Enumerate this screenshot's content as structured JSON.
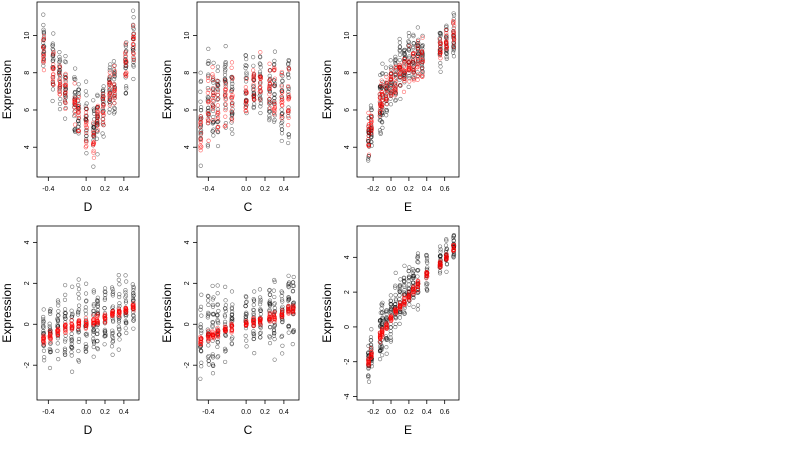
{
  "chart_data": [
    {
      "type": "scatter",
      "title": "",
      "xlabel": "D",
      "ylabel": "Expression",
      "xlim": [
        -0.52,
        0.56
      ],
      "ylim": [
        2.4,
        11.8
      ],
      "xticks": [
        -0.4,
        0.0,
        0.2,
        0.4
      ],
      "xtick_labels": [
        "-0.4",
        "0.0",
        "0.2",
        "0.4"
      ],
      "yticks": [
        4,
        6,
        8,
        10
      ],
      "ytick_labels": [
        "4",
        "6",
        "8",
        "10"
      ],
      "x_columns": [
        -0.45,
        -0.35,
        -0.28,
        -0.22,
        -0.12,
        -0.08,
        0.0,
        0.08,
        0.12,
        0.18,
        0.25,
        0.3,
        0.42,
        0.5
      ],
      "series": [
        {
          "color": "#000000",
          "mean_y": [
            9.5,
            8.3,
            7.6,
            7.2,
            6.6,
            6.2,
            5.3,
            4.9,
            5.8,
            6.4,
            6.9,
            7.3,
            8.3,
            9.6
          ],
          "spread": [
            1.4,
            1.4,
            1.3,
            1.4,
            1.5,
            1.5,
            1.6,
            1.4,
            1.5,
            1.4,
            1.4,
            1.4,
            1.5,
            1.3
          ]
        },
        {
          "color": "#ff0000",
          "mean_y": [
            9.4,
            8.1,
            7.4,
            7.0,
            6.4,
            6.0,
            5.0,
            4.4,
            5.6,
            6.3,
            6.8,
            7.2,
            8.5,
            9.8
          ],
          "spread": [
            0.9,
            0.9,
            0.9,
            0.9,
            0.9,
            0.9,
            0.8,
            0.8,
            0.9,
            0.9,
            0.9,
            0.9,
            0.9,
            0.9
          ]
        }
      ]
    },
    {
      "type": "scatter",
      "title": "",
      "xlabel": "C",
      "ylabel": "Expression",
      "xlim": [
        -0.52,
        0.56
      ],
      "ylim": [
        2.4,
        11.8
      ],
      "xticks": [
        -0.4,
        0.0,
        0.2,
        0.4
      ],
      "xtick_labels": [
        "-0.4",
        "0.0",
        "0.2",
        "0.4"
      ],
      "yticks": [
        4,
        6,
        8,
        10
      ],
      "ytick_labels": [
        "4",
        "6",
        "8",
        "10"
      ],
      "x_columns": [
        -0.48,
        -0.4,
        -0.35,
        -0.3,
        -0.22,
        -0.15,
        0.0,
        0.08,
        0.15,
        0.25,
        0.3,
        0.38,
        0.45
      ],
      "series": [
        {
          "color": "#000000",
          "mean_y": [
            5.5,
            6.0,
            6.5,
            6.2,
            6.8,
            6.4,
            7.0,
            7.2,
            6.9,
            7.0,
            6.8,
            6.4,
            6.6
          ],
          "spread": [
            2.0,
            2.2,
            2.3,
            2.0,
            2.0,
            1.8,
            1.5,
            1.6,
            1.7,
            1.9,
            2.0,
            2.0,
            2.2
          ]
        },
        {
          "color": "#ff0000",
          "mean_y": [
            5.0,
            6.0,
            6.6,
            6.2,
            6.5,
            6.6,
            6.8,
            7.3,
            7.2,
            7.3,
            7.0,
            6.8,
            7.0
          ],
          "spread": [
            1.5,
            1.4,
            1.6,
            1.4,
            1.4,
            1.3,
            1.2,
            1.3,
            1.3,
            1.4,
            1.4,
            1.4,
            1.6
          ]
        }
      ]
    },
    {
      "type": "scatter",
      "title": "",
      "xlabel": "E",
      "ylabel": "Expression",
      "xlim": [
        -0.38,
        0.76
      ],
      "ylim": [
        2.4,
        11.8
      ],
      "xticks": [
        -0.2,
        0.0,
        0.2,
        0.4,
        0.6
      ],
      "xtick_labels": [
        "-0.2",
        "0.0",
        "0.2",
        "0.4",
        "0.6"
      ],
      "yticks": [
        4,
        6,
        8,
        10
      ],
      "ytick_labels": [
        "4",
        "6",
        "8",
        "10"
      ],
      "x_columns": [
        -0.25,
        -0.22,
        -0.12,
        -0.1,
        -0.05,
        0.0,
        0.05,
        0.1,
        0.15,
        0.2,
        0.25,
        0.3,
        0.35,
        0.55,
        0.62,
        0.7
      ],
      "series": [
        {
          "color": "#000000",
          "mean_y": [
            4.4,
            5.0,
            6.4,
            6.8,
            7.2,
            7.6,
            7.8,
            8.2,
            8.4,
            8.7,
            8.8,
            8.9,
            9.0,
            9.4,
            9.6,
            9.8
          ],
          "spread": [
            0.9,
            1.0,
            1.6,
            1.6,
            1.5,
            1.4,
            1.4,
            1.3,
            1.3,
            1.3,
            1.2,
            1.2,
            1.2,
            1.0,
            1.0,
            1.0
          ]
        },
        {
          "color": "#ff0000",
          "mean_y": [
            4.8,
            5.2,
            6.2,
            6.8,
            7.2,
            7.4,
            7.6,
            7.9,
            8.0,
            8.3,
            8.4,
            8.6,
            8.8,
            9.4,
            9.6,
            10.0
          ],
          "spread": [
            0.8,
            0.8,
            0.9,
            0.9,
            0.8,
            0.8,
            0.8,
            0.8,
            0.8,
            0.8,
            0.8,
            0.8,
            0.8,
            0.6,
            0.6,
            0.6
          ]
        }
      ]
    },
    {
      "type": "scatter",
      "title": "",
      "xlabel": "D",
      "ylabel": "Expression",
      "xlim": [
        -0.52,
        0.56
      ],
      "ylim": [
        -3.7,
        4.8
      ],
      "xticks": [
        -0.4,
        0.0,
        0.2,
        0.4
      ],
      "xtick_labels": [
        "-0.4",
        "0.0",
        "0.2",
        "0.4"
      ],
      "yticks": [
        -2,
        0,
        2,
        4
      ],
      "ytick_labels": [
        "-2",
        "0",
        "2",
        "4"
      ],
      "x_columns": [
        -0.45,
        -0.38,
        -0.3,
        -0.22,
        -0.15,
        -0.08,
        0.0,
        0.08,
        0.12,
        0.2,
        0.28,
        0.35,
        0.42,
        0.5
      ],
      "series": [
        {
          "color": "#000000",
          "mean_y": [
            -0.6,
            -0.4,
            -0.2,
            0.0,
            0.1,
            0.2,
            0.1,
            0.3,
            0.3,
            0.4,
            0.5,
            0.6,
            0.7,
            0.9
          ],
          "spread": [
            1.3,
            1.4,
            1.5,
            1.5,
            1.6,
            1.6,
            1.7,
            1.6,
            1.6,
            1.5,
            1.5,
            1.5,
            1.5,
            1.4
          ]
        },
        {
          "color": "#ff0000",
          "mean_y": [
            -0.8,
            -0.6,
            -0.4,
            -0.2,
            -0.1,
            0.0,
            0.05,
            0.15,
            0.2,
            0.3,
            0.45,
            0.55,
            0.7,
            0.85
          ],
          "spread": [
            0.2,
            0.2,
            0.2,
            0.2,
            0.2,
            0.2,
            0.2,
            0.2,
            0.2,
            0.2,
            0.2,
            0.2,
            0.2,
            0.2
          ]
        }
      ]
    },
    {
      "type": "scatter",
      "title": "",
      "xlabel": "C",
      "ylabel": "Expression",
      "xlim": [
        -0.52,
        0.56
      ],
      "ylim": [
        -3.7,
        4.8
      ],
      "xticks": [
        -0.4,
        0.0,
        0.2,
        0.4
      ],
      "xtick_labels": [
        "-0.4",
        "0.0",
        "0.2",
        "0.4"
      ],
      "yticks": [
        -2,
        0,
        2,
        4
      ],
      "ytick_labels": [
        "-2",
        "0",
        "2",
        "4"
      ],
      "x_columns": [
        -0.48,
        -0.4,
        -0.35,
        -0.3,
        -0.22,
        -0.15,
        0.0,
        0.08,
        0.15,
        0.25,
        0.3,
        0.38,
        0.45,
        0.5
      ],
      "series": [
        {
          "color": "#000000",
          "mean_y": [
            -0.6,
            -0.3,
            -0.2,
            0.0,
            0.0,
            0.1,
            0.2,
            0.3,
            0.4,
            0.5,
            0.5,
            0.6,
            0.7,
            0.8
          ],
          "spread": [
            1.5,
            1.6,
            1.8,
            1.5,
            1.5,
            1.4,
            1.3,
            1.4,
            1.4,
            1.5,
            1.5,
            1.5,
            1.7,
            1.6
          ]
        },
        {
          "color": "#ff0000",
          "mean_y": [
            -0.8,
            -0.6,
            -0.5,
            -0.4,
            -0.3,
            -0.2,
            0.0,
            0.1,
            0.2,
            0.35,
            0.4,
            0.5,
            0.65,
            0.75
          ],
          "spread": [
            0.2,
            0.2,
            0.2,
            0.2,
            0.2,
            0.2,
            0.2,
            0.2,
            0.2,
            0.2,
            0.2,
            0.2,
            0.2,
            0.2
          ]
        }
      ]
    },
    {
      "type": "scatter",
      "title": "",
      "xlabel": "E",
      "ylabel": "Expression",
      "xlim": [
        -0.38,
        0.76
      ],
      "ylim": [
        -4.2,
        5.8
      ],
      "xticks": [
        -0.2,
        0.0,
        0.2,
        0.4,
        0.6
      ],
      "xtick_labels": [
        "-0.2",
        "0.0",
        "0.2",
        "0.4",
        "0.6"
      ],
      "yticks": [
        -4,
        -2,
        0,
        2,
        4
      ],
      "ytick_labels": [
        "-4",
        "-2",
        "0",
        "2",
        "4"
      ],
      "x_columns": [
        -0.25,
        -0.22,
        -0.12,
        -0.1,
        -0.05,
        0.0,
        0.05,
        0.1,
        0.15,
        0.2,
        0.25,
        0.3,
        0.4,
        0.55,
        0.62,
        0.7
      ],
      "series": [
        {
          "color": "#000000",
          "mean_y": [
            -2.2,
            -1.6,
            -0.4,
            -0.1,
            0.2,
            0.6,
            1.0,
            1.4,
            1.8,
            2.2,
            2.6,
            2.8,
            3.3,
            3.8,
            4.2,
            4.6
          ],
          "spread": [
            0.8,
            1.0,
            1.5,
            1.5,
            1.4,
            1.4,
            1.4,
            1.3,
            1.3,
            1.3,
            1.2,
            1.2,
            1.0,
            0.9,
            0.8,
            0.6
          ]
        },
        {
          "color": "#ff0000",
          "mean_y": [
            -2.0,
            -1.6,
            -0.6,
            -0.3,
            0.1,
            0.5,
            0.9,
            1.2,
            1.5,
            1.8,
            2.1,
            2.4,
            3.0,
            3.6,
            4.0,
            4.5
          ],
          "spread": [
            0.25,
            0.25,
            0.2,
            0.2,
            0.2,
            0.2,
            0.2,
            0.2,
            0.2,
            0.2,
            0.2,
            0.2,
            0.2,
            0.2,
            0.2,
            0.2
          ]
        }
      ]
    }
  ]
}
